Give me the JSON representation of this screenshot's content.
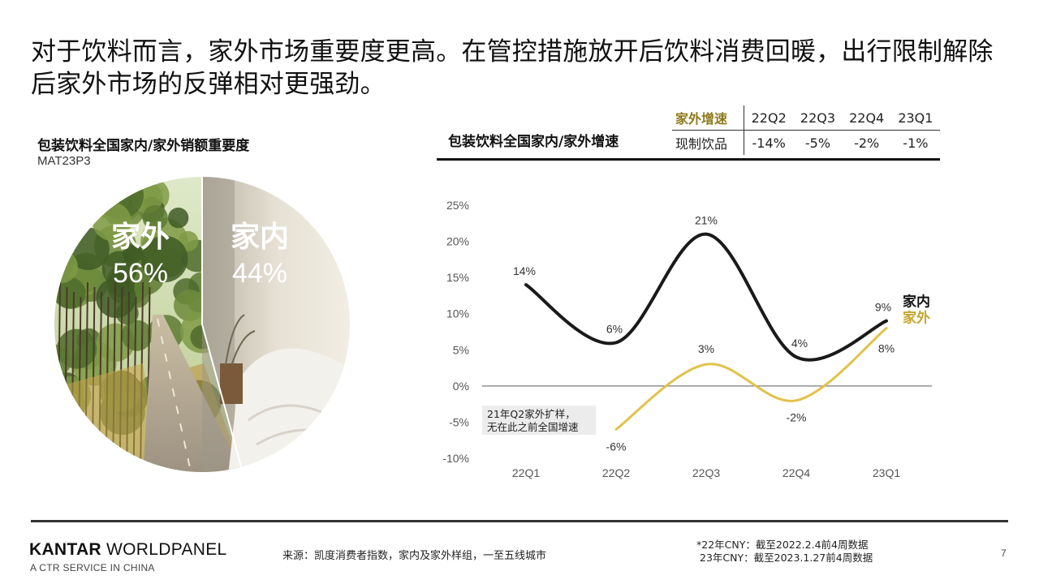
{
  "headline": "对于饮料而言，家外市场重要度更高。在管控措施放开后饮料消费回暖，出行限制解除后家外市场的反弹相对更强劲。",
  "pie": {
    "title": "包装饮料全国家内/家外销额重要度",
    "subtitle": "MAT23P3",
    "slices": [
      {
        "label": "家外",
        "value_label": "56%",
        "value": 56
      },
      {
        "label": "家内",
        "value_label": "44%",
        "value": 44
      }
    ]
  },
  "growth_table": {
    "header_label": "家外增速",
    "columns": [
      "22Q2",
      "22Q3",
      "22Q4",
      "23Q1"
    ],
    "row_label": "现制饮品",
    "row_values": [
      "-14%",
      "-5%",
      "-2%",
      "-1%"
    ]
  },
  "chart_data": {
    "type": "line",
    "title": "包装饮料全国家内/家外增速",
    "categories": [
      "22Q1",
      "22Q2",
      "22Q3",
      "22Q4",
      "23Q1"
    ],
    "ylim": [
      -10,
      25
    ],
    "yticks": [
      "25%",
      "20%",
      "15%",
      "10%",
      "5%",
      "0%",
      "-5%",
      "-10%"
    ],
    "grid": false,
    "series": [
      {
        "name": "家内",
        "values": [
          14,
          6,
          21,
          4,
          9
        ],
        "labels": [
          "14%",
          "6%",
          "21%",
          "4%",
          "9%"
        ],
        "color": "#1a1a1a"
      },
      {
        "name": "家外",
        "values": [
          null,
          -6,
          3,
          -2,
          8
        ],
        "labels": [
          "",
          "-6%",
          "3%",
          "-2%",
          "8%"
        ],
        "color": "#e2c24a"
      }
    ],
    "annotation": [
      "21年Q2家外扩样，",
      "无在此之前全国增速"
    ]
  },
  "footer": {
    "brand_bold": "KANTAR",
    "brand_rest": " WORLDPANEL",
    "tagline": "A CTR SERVICE IN CHINA",
    "source": "来源：凯度消费者指数，家内及家外样组，一至五线城市",
    "notes": [
      "*22年CNY：截至2022.2.4前4周数据",
      "23年CNY：截至2023.1.27前4周数据"
    ],
    "page_number": "7"
  }
}
